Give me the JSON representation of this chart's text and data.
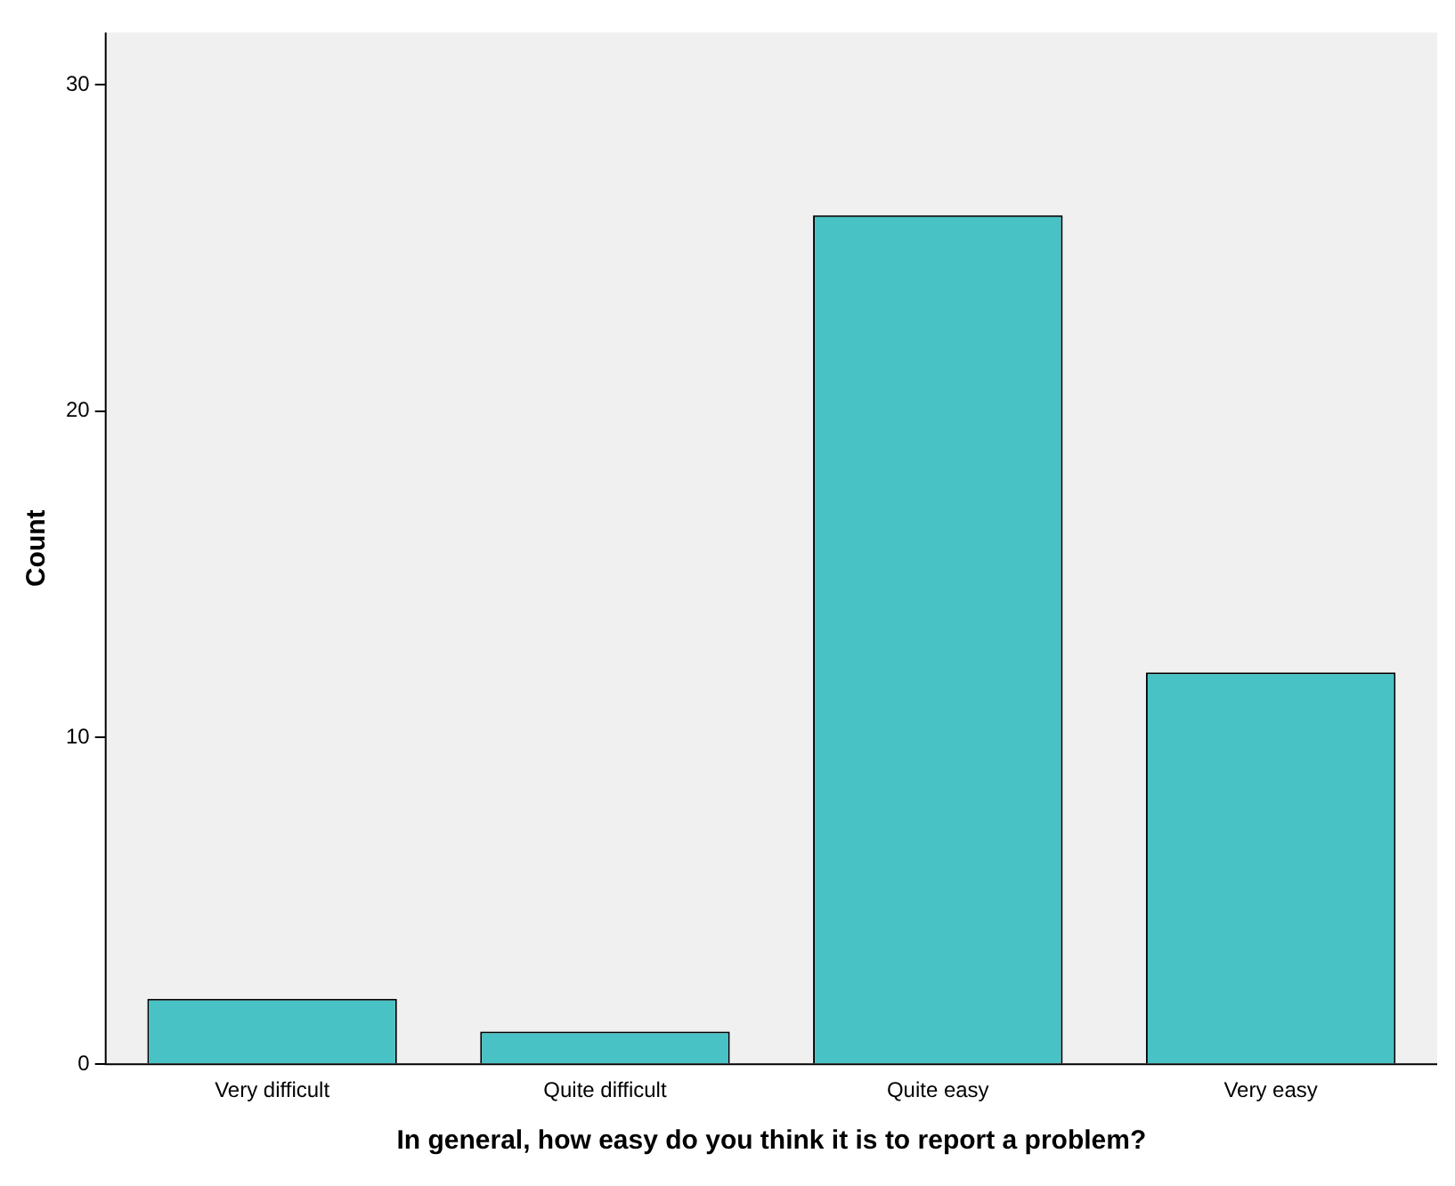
{
  "chart_data": {
    "type": "bar",
    "xlabel": "In general, how easy do you think it is to report a problem?",
    "ylabel": "Count",
    "categories": [
      "Very difficult",
      "Quite difficult",
      "Quite easy",
      "Very easy"
    ],
    "values": [
      2,
      1,
      26,
      12
    ],
    "color": "#48c2c5",
    "ylim": [
      0,
      31.6
    ],
    "yticks": [
      0,
      10,
      20,
      30
    ],
    "grid": false,
    "legend": false
  }
}
